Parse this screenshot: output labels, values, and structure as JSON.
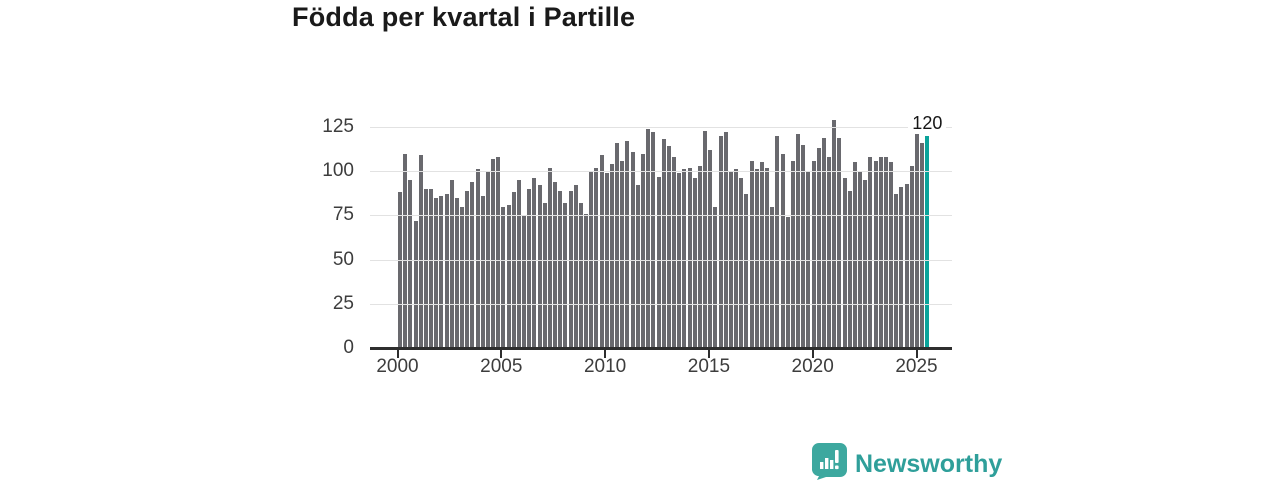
{
  "title": "Födda per kvartal i Partille",
  "logo": {
    "text": "Newsworthy"
  },
  "colors": {
    "bar": "#69696e",
    "highlight": "#0ba39a",
    "axis": "#2e2e2e",
    "gridline": "#e2e2e2",
    "title_text": "#1a1a1a",
    "tick_text": "#3d3d3d",
    "logo_icon": "#3da89f",
    "logo_text": "#2f9f9a"
  },
  "chart_data": {
    "type": "bar",
    "title": "Födda per kvartal i Partille",
    "xlabel": "",
    "ylabel": "",
    "frequency": "quarterly",
    "start_period": "2000 Q1",
    "end_period": "2025 Q3",
    "grid": true,
    "ylim": [
      0,
      132
    ],
    "y_ticks": [
      0,
      25,
      50,
      75,
      100,
      125
    ],
    "x_ticks": [
      "2000",
      "2005",
      "2010",
      "2015",
      "2020",
      "2025"
    ],
    "values": [
      88,
      110,
      95,
      72,
      109,
      90,
      90,
      85,
      86,
      87,
      95,
      85,
      80,
      89,
      94,
      101,
      86,
      100,
      107,
      108,
      80,
      81,
      88,
      95,
      75,
      90,
      96,
      92,
      82,
      102,
      94,
      89,
      82,
      89,
      92,
      82,
      76,
      100,
      102,
      109,
      99,
      104,
      116,
      106,
      117,
      111,
      92,
      110,
      124,
      122,
      97,
      118,
      114,
      108,
      99,
      101,
      102,
      96,
      103,
      123,
      112,
      80,
      120,
      122,
      100,
      101,
      96,
      87,
      106,
      101,
      105,
      102,
      80,
      120,
      110,
      74,
      106,
      121,
      115,
      100,
      106,
      113,
      119,
      108,
      129,
      119,
      96,
      89,
      105,
      100,
      95,
      108,
      106,
      108,
      108,
      105,
      87,
      91,
      93,
      103,
      121,
      116,
      120
    ],
    "highlight": {
      "index": 102,
      "value": 120,
      "label": "120"
    }
  }
}
